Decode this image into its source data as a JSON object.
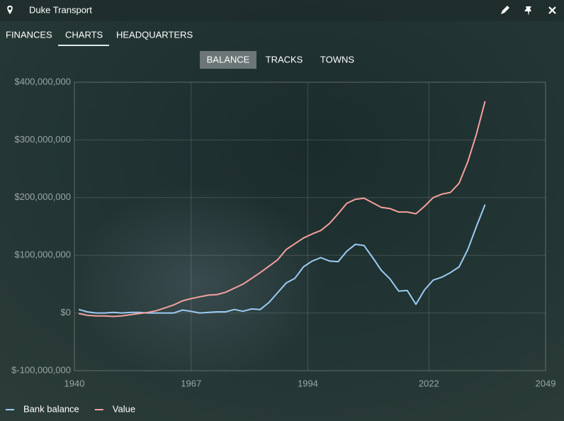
{
  "header": {
    "title": "Duke Transport"
  },
  "tabs": [
    "FINANCES",
    "CHARTS",
    "HEADQUARTERS"
  ],
  "subtabs": [
    "BALANCE",
    "TRACKS",
    "TOWNS"
  ],
  "chart_data": {
    "type": "line",
    "x": [
      1941,
      1943,
      1945,
      1947,
      1949,
      1951,
      1953,
      1955,
      1957,
      1959,
      1961,
      1963,
      1965,
      1967,
      1969,
      1971,
      1973,
      1975,
      1977,
      1979,
      1981,
      1983,
      1985,
      1987,
      1989,
      1991,
      1993,
      1995,
      1997,
      1999,
      2001,
      2003,
      2005,
      2007,
      2009,
      2011,
      2013,
      2015,
      2017,
      2019,
      2021,
      2023,
      2025,
      2027,
      2029,
      2031,
      2033,
      2035
    ],
    "series": [
      {
        "name": "Bank balance",
        "color": "#9ccbf4",
        "values": [
          6000000.0,
          2000000.0,
          0,
          0,
          1000000.0,
          0,
          1000000.0,
          1000000.0,
          0,
          0,
          0,
          0,
          5000000.0,
          3000000.0,
          0,
          1000000.0,
          2000000.0,
          2000000.0,
          6000000.0,
          3000000.0,
          7000000.0,
          6000000.0,
          18000000.0,
          35000000.0,
          52000000.0,
          60000000.0,
          80000000.0,
          90000000.0,
          96000000.0,
          90000000.0,
          89000000.0,
          107000000.0,
          119000000.0,
          117000000.0,
          96000000.0,
          74000000.0,
          59000000.0,
          38000000.0,
          39000000.0,
          15000000.0,
          40000000.0,
          57000000.0,
          62000000.0,
          70000000.0,
          80000000.0,
          110000000.0,
          150000000.0,
          188000000.0
        ]
      },
      {
        "name": "Value",
        "color": "#f4a19c",
        "values": [
          -1000000.0,
          -4000000.0,
          -5000000.0,
          -5000000.0,
          -6000000.0,
          -5000000.0,
          -3000000.0,
          -1000000.0,
          1000000.0,
          4000000.0,
          9000000.0,
          14000000.0,
          21000000.0,
          25000000.0,
          28000000.0,
          31000000.0,
          32000000.0,
          36000000.0,
          43000000.0,
          50000000.0,
          60000000.0,
          70000000.0,
          81000000.0,
          92000000.0,
          110000000.0,
          120000000.0,
          130000000.0,
          137000000.0,
          143000000.0,
          155000000.0,
          172000000.0,
          190000000.0,
          197000000.0,
          199000000.0,
          191000000.0,
          183000000.0,
          181000000.0,
          175000000.0,
          175000000.0,
          172000000.0,
          185000000.0,
          200000000.0,
          206000000.0,
          209000000.0,
          225000000.0,
          262000000.0,
          310000000.0,
          367000000.0
        ]
      }
    ],
    "xlim": [
      1940,
      2049
    ],
    "xticks": [
      1940,
      1967,
      1994,
      2022,
      2049
    ],
    "ylim": [
      -100000000,
      400000000
    ],
    "yticks": [
      {
        "value": -100000000,
        "label": "$-100,000,000"
      },
      {
        "value": 0,
        "label": "$0"
      },
      {
        "value": 100000000,
        "label": "$100,000,000"
      },
      {
        "value": 200000000,
        "label": "$200,000,000"
      },
      {
        "value": 300000000,
        "label": "$300,000,000"
      },
      {
        "value": 400000000,
        "label": "$400,000,000"
      }
    ],
    "grid": true,
    "legend": "bottom-left"
  }
}
